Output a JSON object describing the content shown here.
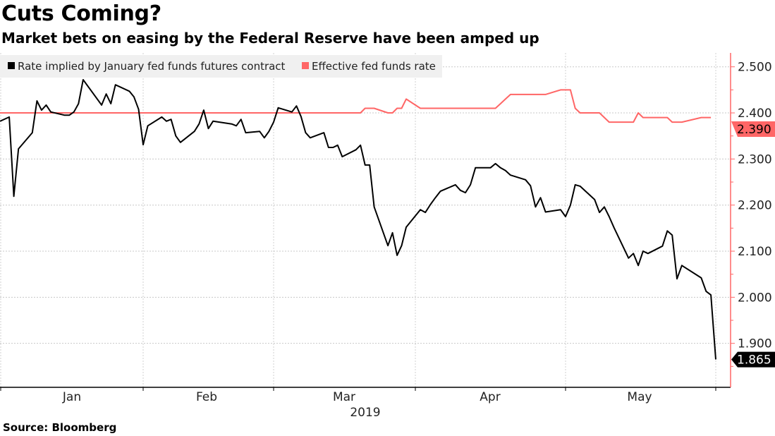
{
  "chart_data": {
    "type": "line",
    "title": "Cuts Coming?",
    "subtitle": "Market bets on easing by the Federal Reserve have been amped up",
    "source": "Source: Bloomberg",
    "xlabel": "2019",
    "x_tick_labels": [
      "Jan",
      "Feb",
      "Mar",
      "Apr",
      "May"
    ],
    "y_axis_side": "right",
    "ylim": [
      1.83,
      2.53
    ],
    "y_ticks": [
      1.9,
      2.0,
      2.1,
      2.2,
      2.3,
      2.4,
      2.5
    ],
    "y_tick_labels": [
      "1.900",
      "2.000",
      "2.100",
      "2.200",
      "2.300",
      "2.400",
      "2.500"
    ],
    "grid": true,
    "legend_position": "top-left",
    "x": [
      "2018-12-31",
      "2019-01-02",
      "2019-01-03",
      "2019-01-04",
      "2019-01-07",
      "2019-01-08",
      "2019-01-09",
      "2019-01-10",
      "2019-01-11",
      "2019-01-14",
      "2019-01-15",
      "2019-01-16",
      "2019-01-17",
      "2019-01-18",
      "2019-01-22",
      "2019-01-23",
      "2019-01-24",
      "2019-01-25",
      "2019-01-28",
      "2019-01-29",
      "2019-01-30",
      "2019-01-31",
      "2019-02-01",
      "2019-02-04",
      "2019-02-05",
      "2019-02-06",
      "2019-02-07",
      "2019-02-08",
      "2019-02-11",
      "2019-02-12",
      "2019-02-13",
      "2019-02-14",
      "2019-02-15",
      "2019-02-19",
      "2019-02-20",
      "2019-02-21",
      "2019-02-22",
      "2019-02-25",
      "2019-02-26",
      "2019-02-27",
      "2019-02-28",
      "2019-03-01",
      "2019-03-04",
      "2019-03-05",
      "2019-03-06",
      "2019-03-07",
      "2019-03-08",
      "2019-03-11",
      "2019-03-12",
      "2019-03-13",
      "2019-03-14",
      "2019-03-15",
      "2019-03-18",
      "2019-03-19",
      "2019-03-20",
      "2019-03-21",
      "2019-03-22",
      "2019-03-25",
      "2019-03-26",
      "2019-03-27",
      "2019-03-28",
      "2019-03-29",
      "2019-04-01",
      "2019-04-02",
      "2019-04-03",
      "2019-04-04",
      "2019-04-05",
      "2019-04-08",
      "2019-04-09",
      "2019-04-10",
      "2019-04-11",
      "2019-04-12",
      "2019-04-15",
      "2019-04-16",
      "2019-04-17",
      "2019-04-18",
      "2019-04-19",
      "2019-04-22",
      "2019-04-23",
      "2019-04-24",
      "2019-04-25",
      "2019-04-26",
      "2019-04-29",
      "2019-04-30",
      "2019-05-01",
      "2019-05-02",
      "2019-05-03",
      "2019-05-06",
      "2019-05-07",
      "2019-05-08",
      "2019-05-09",
      "2019-05-10",
      "2019-05-13",
      "2019-05-14",
      "2019-05-15",
      "2019-05-16",
      "2019-05-17",
      "2019-05-20",
      "2019-05-21",
      "2019-05-22",
      "2019-05-23",
      "2019-05-24",
      "2019-05-28",
      "2019-05-29",
      "2019-05-30",
      "2019-05-31"
    ],
    "series": [
      {
        "name": "Rate implied by January fed funds futures contract",
        "color": "#000000",
        "last_value_label": "1.865",
        "values": [
          2.382,
          2.391,
          2.219,
          2.322,
          2.357,
          2.426,
          2.406,
          2.417,
          2.402,
          2.395,
          2.395,
          2.402,
          2.42,
          2.472,
          2.417,
          2.441,
          2.42,
          2.461,
          2.447,
          2.435,
          2.408,
          2.331,
          2.372,
          2.391,
          2.382,
          2.386,
          2.35,
          2.336,
          2.36,
          2.376,
          2.406,
          2.366,
          2.382,
          2.376,
          2.372,
          2.386,
          2.357,
          2.36,
          2.346,
          2.36,
          2.38,
          2.411,
          2.402,
          2.415,
          2.392,
          2.357,
          2.346,
          2.357,
          2.325,
          2.325,
          2.33,
          2.305,
          2.32,
          2.33,
          2.287,
          2.287,
          2.196,
          2.112,
          2.14,
          2.091,
          2.112,
          2.152,
          2.19,
          2.184,
          2.201,
          2.216,
          2.23,
          2.244,
          2.232,
          2.227,
          2.244,
          2.281,
          2.281,
          2.29,
          2.281,
          2.275,
          2.265,
          2.255,
          2.242,
          2.196,
          2.216,
          2.185,
          2.19,
          2.175,
          2.2,
          2.244,
          2.241,
          2.212,
          2.184,
          2.196,
          2.175,
          2.151,
          2.085,
          2.095,
          2.069,
          2.1,
          2.095,
          2.111,
          2.144,
          2.135,
          2.04,
          2.069,
          2.042,
          2.013,
          2.005,
          1.865
        ]
      },
      {
        "name": "Effective fed funds rate",
        "color": "#ff6666",
        "last_value_label": "2.390",
        "values": [
          2.4,
          2.4,
          2.4,
          2.4,
          2.4,
          2.4,
          2.4,
          2.4,
          2.4,
          2.4,
          2.4,
          2.4,
          2.4,
          2.4,
          2.4,
          2.4,
          2.4,
          2.4,
          2.4,
          2.4,
          2.4,
          2.4,
          2.4,
          2.4,
          2.4,
          2.4,
          2.4,
          2.4,
          2.4,
          2.4,
          2.4,
          2.4,
          2.4,
          2.4,
          2.4,
          2.4,
          2.4,
          2.4,
          2.4,
          2.4,
          2.4,
          2.4,
          2.4,
          2.4,
          2.4,
          2.4,
          2.4,
          2.4,
          2.4,
          2.4,
          2.4,
          2.4,
          2.4,
          2.4,
          2.41,
          2.41,
          2.41,
          2.4,
          2.4,
          2.41,
          2.41,
          2.43,
          2.41,
          2.41,
          2.41,
          2.41,
          2.41,
          2.41,
          2.41,
          2.41,
          2.41,
          2.41,
          2.41,
          2.41,
          2.42,
          2.43,
          2.44,
          2.44,
          2.44,
          2.44,
          2.44,
          2.44,
          2.45,
          2.45,
          2.45,
          2.41,
          2.4,
          2.4,
          2.4,
          2.39,
          2.38,
          2.38,
          2.38,
          2.38,
          2.4,
          2.39,
          2.39,
          2.39,
          2.39,
          2.38,
          2.38,
          2.38,
          2.39,
          2.39,
          2.39,
          null
        ]
      }
    ]
  }
}
